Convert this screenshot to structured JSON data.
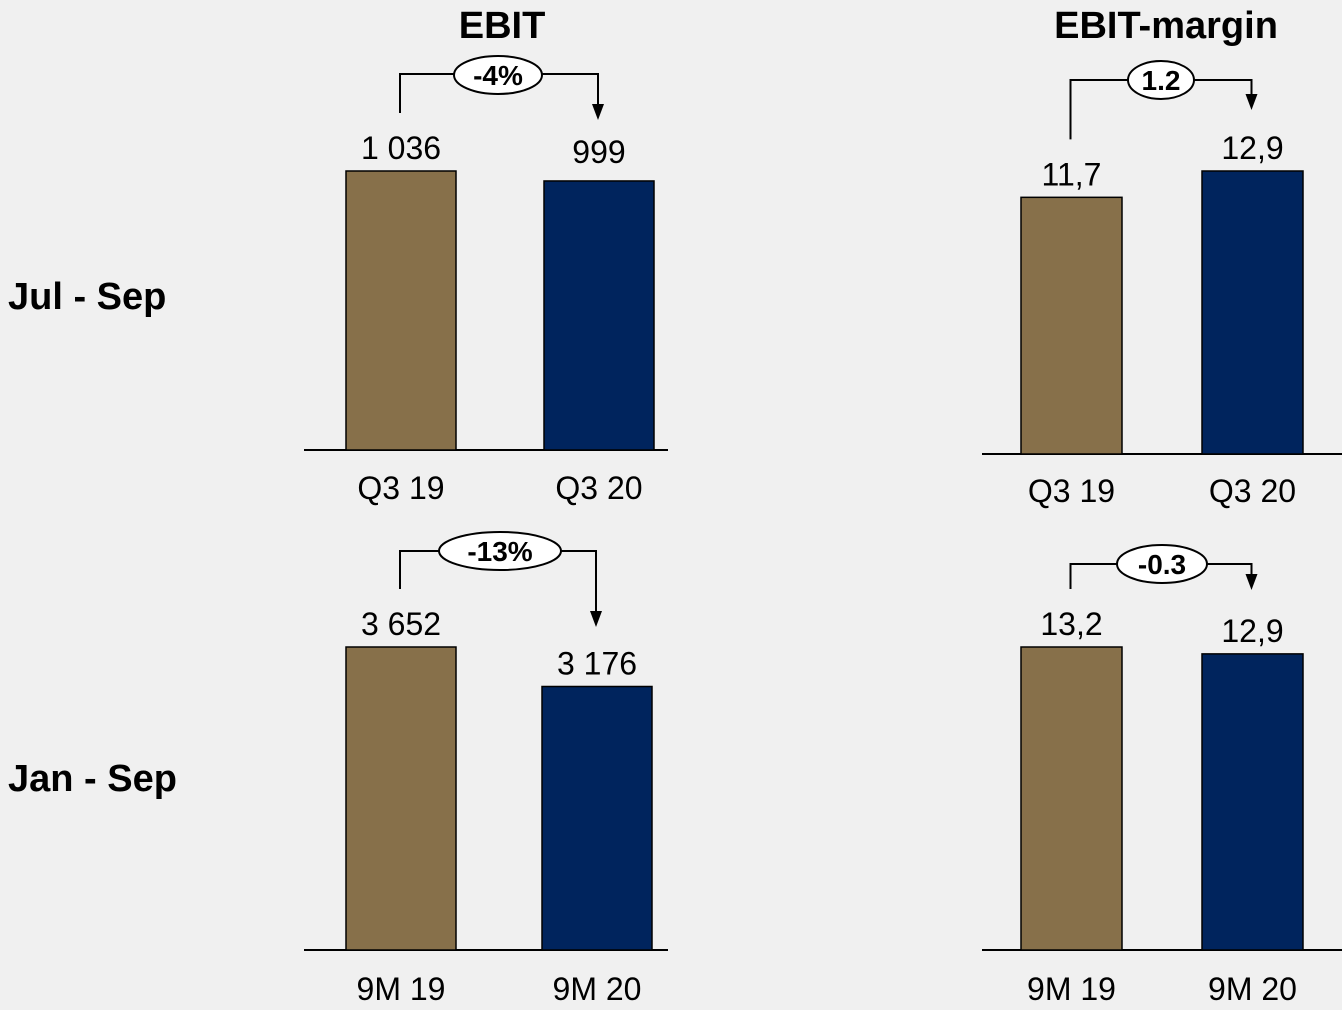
{
  "headers": {
    "ebit": "EBIT",
    "margin": "EBIT-margin"
  },
  "rows": [
    "Jul - Sep",
    "Jan - Sep"
  ],
  "colors": {
    "prior": "#87704a",
    "current": "#00245d",
    "axis": "#000000"
  },
  "chart_data": [
    {
      "type": "bar",
      "title": "EBIT",
      "row_label": "Jul - Sep",
      "categories": [
        "Q3 19",
        "Q3 20"
      ],
      "values": [
        1036,
        999
      ],
      "value_labels": [
        "1 036",
        "999"
      ],
      "change_label": "-4%",
      "change_shape": "ellipse",
      "ylim": [
        0,
        1036
      ]
    },
    {
      "type": "bar",
      "title": "EBIT-margin",
      "row_label": "Jul - Sep",
      "categories": [
        "Q3 19",
        "Q3 20"
      ],
      "values": [
        11.7,
        12.9
      ],
      "value_labels": [
        "11,7",
        "12,9"
      ],
      "change_label": "1.2",
      "change_shape": "circle",
      "ylim": [
        0,
        12.9
      ]
    },
    {
      "type": "bar",
      "title": "EBIT",
      "row_label": "Jan - Sep",
      "categories": [
        "9M 19",
        "9M 20"
      ],
      "values": [
        3652,
        3176
      ],
      "value_labels": [
        "3 652",
        "3 176"
      ],
      "change_label": "-13%",
      "change_shape": "ellipse",
      "ylim": [
        0,
        3652
      ]
    },
    {
      "type": "bar",
      "title": "EBIT-margin",
      "row_label": "Jan - Sep",
      "categories": [
        "9M 19",
        "9M 20"
      ],
      "values": [
        13.2,
        12.9
      ],
      "value_labels": [
        "13,2",
        "12,9"
      ],
      "change_label": "-0.3",
      "change_shape": "circle",
      "ylim": [
        0,
        13.2
      ]
    }
  ]
}
